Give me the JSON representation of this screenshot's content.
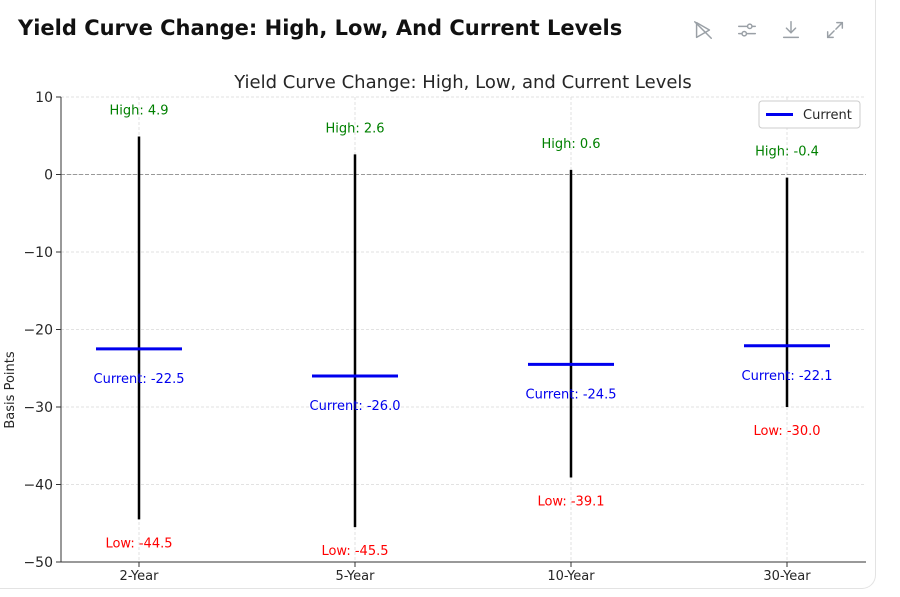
{
  "header": {
    "title": "Yield Curve Change: High, Low, And Current Levels"
  },
  "toolbar": {
    "icons": [
      "hide-code-icon",
      "settings-sliders-icon",
      "download-icon",
      "expand-icon"
    ]
  },
  "colors": {
    "range_line": "#000000",
    "current": "#0000ee",
    "high": "#008000",
    "low": "#ff0000",
    "grid": "#d9d9d9"
  },
  "chart_data": {
    "type": "error-bar",
    "title": "Yield Curve Change: High, Low, and Current Levels",
    "xlabel": "",
    "ylabel": "Basis Points",
    "ylim": [
      -50,
      10
    ],
    "yticks": [
      "10",
      "0",
      "−10",
      "−20",
      "−30",
      "−40",
      "−50"
    ],
    "categories": [
      "2-Year",
      "5-Year",
      "10-Year",
      "30-Year"
    ],
    "high": [
      4.9,
      2.6,
      0.6,
      -0.4
    ],
    "low": [
      -44.5,
      -45.5,
      -39.1,
      -30.0
    ],
    "current": [
      -22.5,
      -26.0,
      -24.5,
      -22.1
    ],
    "high_labels": [
      "High: 4.9",
      "High: 2.6",
      "High: 0.6",
      "High: -0.4"
    ],
    "low_labels": [
      "Low: -44.5",
      "Low: -45.5",
      "Low: -39.1",
      "Low: -30.0"
    ],
    "current_labels": [
      "Current: -22.5",
      "Current: -26.0",
      "Current: -24.5",
      "Current: -22.1"
    ],
    "legend": {
      "entries": [
        "Current"
      ],
      "position": "top-right"
    },
    "grid": true,
    "reference_line": 0
  }
}
